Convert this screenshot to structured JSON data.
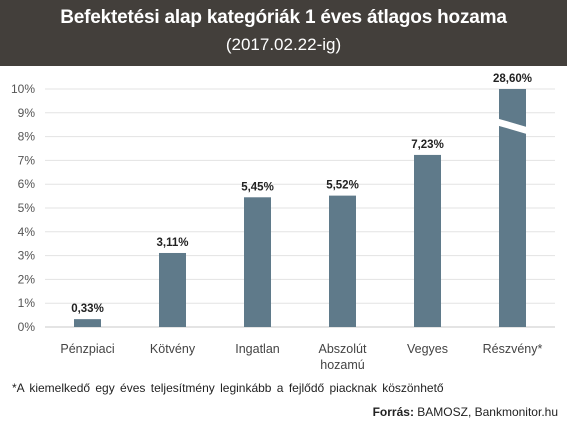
{
  "header": {
    "title": "Befektetési alap kategóriák 1 éves átlagos hozama",
    "subtitle": "(2017.02.22-ig)"
  },
  "chart_data": {
    "type": "bar",
    "categories": [
      [
        "Pénzpiaci"
      ],
      [
        "Kötvény"
      ],
      [
        "Ingatlan"
      ],
      [
        "Abszolút",
        "hozamú"
      ],
      [
        "Vegyes"
      ],
      [
        "Részvény*"
      ]
    ],
    "values": [
      0.33,
      3.11,
      5.45,
      5.52,
      7.23,
      28.6
    ],
    "data_labels": [
      "0,33%",
      "3,11%",
      "5,45%",
      "5,52%",
      "7,23%",
      "28,60%"
    ],
    "ylim": [
      0,
      10
    ],
    "yticks": [
      "0%",
      "1%",
      "2%",
      "3%",
      "4%",
      "5%",
      "6%",
      "7%",
      "8%",
      "9%",
      "10%"
    ],
    "axis_break": "Részvény*",
    "grid": true,
    "bar_color": "#5f7a8a"
  },
  "footnote": "*A kiemelkedő egy éves teljesítmény leginkább a fejlődő piacknak köszönhető",
  "source": {
    "label": "Forrás:",
    "text": " BAMOSZ, Bankmonitor.hu"
  }
}
